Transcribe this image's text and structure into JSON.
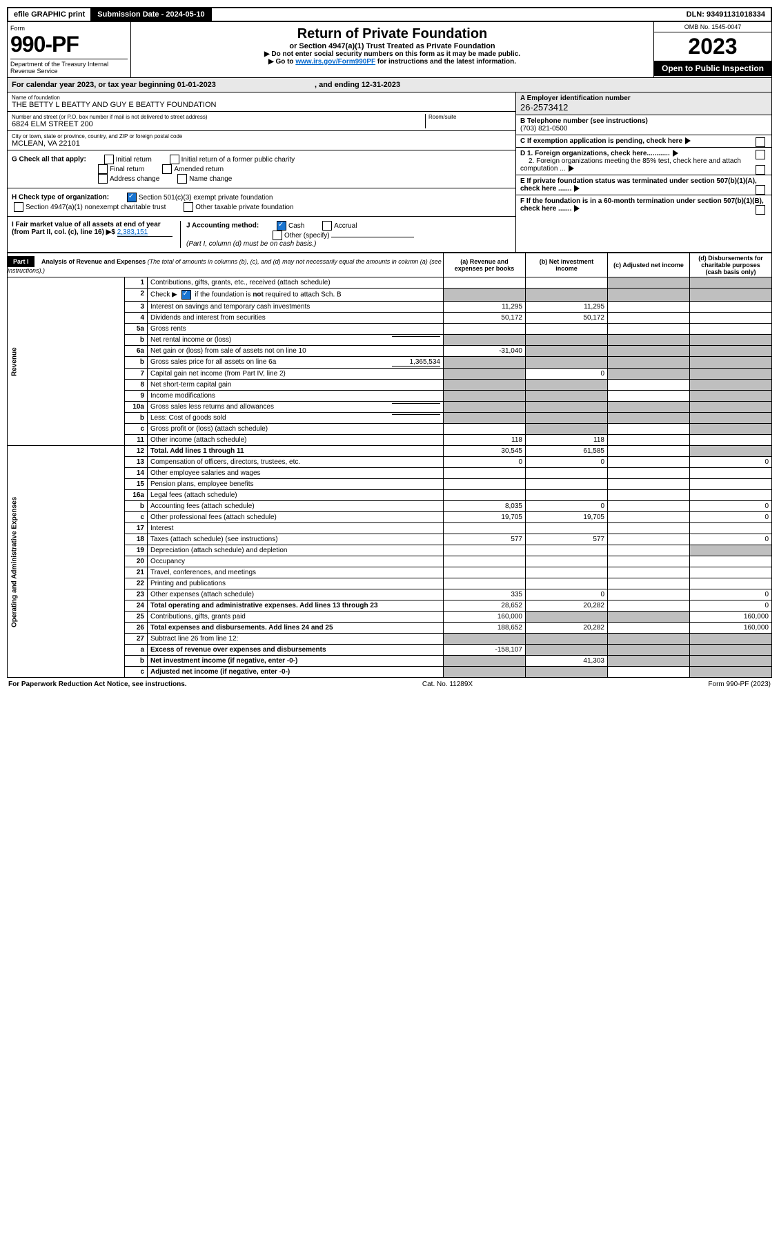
{
  "topbar": {
    "efile": "efile GRAPHIC print",
    "subdate_lbl": "Submission Date - ",
    "subdate": "2024-05-10",
    "dln_lbl": "DLN: ",
    "dln": "93491131018334"
  },
  "header": {
    "form": "Form",
    "num": "990-PF",
    "dept": "Department of the Treasury\nInternal Revenue Service",
    "title": "Return of Private Foundation",
    "sub": "or Section 4947(a)(1) Trust Treated as Private Foundation",
    "note1": "▶ Do not enter social security numbers on this form as it may be made public.",
    "note2": "▶ Go to ",
    "link": "www.irs.gov/Form990PF",
    "note3": " for instructions and the latest information.",
    "omb": "OMB No. 1545-0047",
    "year": "2023",
    "open": "Open to Public Inspection"
  },
  "cal": {
    "text": "For calendar year 2023, or tax year beginning 01-01-2023",
    "mid": ", and ending 12-31-2023"
  },
  "ident": {
    "name_lbl": "Name of foundation",
    "name": "THE BETTY L BEATTY AND GUY E BEATTY FOUNDATION",
    "addr_lbl": "Number and street (or P.O. box number if mail is not delivered to street address)",
    "addr": "6824 ELM STREET 200",
    "room_lbl": "Room/suite",
    "city_lbl": "City or town, state or province, country, and ZIP or foreign postal code",
    "city": "MCLEAN, VA  22101",
    "ein_lbl": "A Employer identification number",
    "ein": "26-2573412",
    "tel_lbl": "B Telephone number (see instructions)",
    "tel": "(703) 821-0500",
    "c": "C If exemption application is pending, check here",
    "d1": "D 1. Foreign organizations, check here............",
    "d2": "2. Foreign organizations meeting the 85% test, check here and attach computation ...",
    "e": "E If private foundation status was terminated under section 507(b)(1)(A), check here .......",
    "f": "F If the foundation is in a 60-month termination under section 507(b)(1)(B), check here .......",
    "g_lbl": "G Check all that apply:",
    "g1": "Initial return",
    "g2": "Final return",
    "g3": "Address change",
    "g4": "Initial return of a former public charity",
    "g5": "Amended return",
    "g6": "Name change",
    "h_lbl": "H Check type of organization:",
    "h1": "Section 501(c)(3) exempt private foundation",
    "h2": "Section 4947(a)(1) nonexempt charitable trust",
    "h3": "Other taxable private foundation",
    "i_lbl": "I Fair market value of all assets at end of year (from Part II, col. (c), line 16) ▶$ ",
    "i_val": "2,383,151",
    "j_lbl": "J Accounting method:",
    "j1": "Cash",
    "j2": "Accrual",
    "j3": "Other (specify)",
    "j_note": "(Part I, column (d) must be on cash basis.)"
  },
  "part1": {
    "hdr": "Part I",
    "title": "Analysis of Revenue and Expenses",
    "note": "(The total of amounts in columns (b), (c), and (d) may not necessarily equal the amounts in column (a) (see instructions).)",
    "cols": {
      "a": "(a) Revenue and expenses per books",
      "b": "(b) Net investment income",
      "c": "(c) Adjusted net income",
      "d": "(d) Disbursements for charitable purposes (cash basis only)"
    }
  },
  "sections": {
    "rev": "Revenue",
    "oae": "Operating and Administrative Expenses"
  },
  "rows": [
    {
      "n": "1",
      "d": "Contributions, gifts, grants, etc., received (attach schedule)",
      "a": "",
      "b": "",
      "cs": true,
      "ds": true
    },
    {
      "n": "2",
      "d": "Check ▶ [✓] if the foundation is not required to attach Sch. B",
      "dotted": true,
      "a": "",
      "as": true,
      "bs": true,
      "cs": true,
      "ds": true
    },
    {
      "n": "3",
      "d": "Interest on savings and temporary cash investments",
      "a": "11,295",
      "b": "11,295"
    },
    {
      "n": "4",
      "d": "Dividends and interest from securities",
      "a": "50,172",
      "b": "50,172"
    },
    {
      "n": "5a",
      "d": "Gross rents",
      "dotted": true
    },
    {
      "n": "b",
      "d": "Net rental income or (loss)",
      "inline": true,
      "as": true,
      "bs": true,
      "cs": true,
      "ds": true
    },
    {
      "n": "6a",
      "d": "Net gain or (loss) from sale of assets not on line 10",
      "a": "-31,040",
      "bs": true,
      "cs": true,
      "ds": true
    },
    {
      "n": "b",
      "d": "Gross sales price for all assets on line 6a",
      "inline_val": "1,365,534",
      "as": true,
      "bs": true,
      "cs": true,
      "ds": true
    },
    {
      "n": "7",
      "d": "Capital gain net income (from Part IV, line 2)",
      "as": true,
      "b": "0",
      "cs": true,
      "ds": true
    },
    {
      "n": "8",
      "d": "Net short-term capital gain",
      "dotted": true,
      "as": true,
      "bs": true,
      "ds": true
    },
    {
      "n": "9",
      "d": "Income modifications",
      "dotted": true,
      "as": true,
      "bs": true,
      "ds": true
    },
    {
      "n": "10a",
      "d": "Gross sales less returns and allowances",
      "inline": true,
      "as": true,
      "bs": true,
      "cs": true,
      "ds": true
    },
    {
      "n": "b",
      "d": "Less: Cost of goods sold",
      "dotted": true,
      "inline": true,
      "as": true,
      "bs": true,
      "cs": true,
      "ds": true
    },
    {
      "n": "c",
      "d": "Gross profit or (loss) (attach schedule)",
      "dotted": true,
      "bs": true,
      "ds": true
    },
    {
      "n": "11",
      "d": "Other income (attach schedule)",
      "dotted": true,
      "a": "118",
      "b": "118"
    },
    {
      "n": "12",
      "d": "Total. Add lines 1 through 11",
      "dotted": true,
      "bold": true,
      "a": "30,545",
      "b": "61,585",
      "ds": true
    },
    {
      "sec": "oae",
      "n": "13",
      "d": "Compensation of officers, directors, trustees, etc.",
      "a": "0",
      "b": "0",
      "dval": "0"
    },
    {
      "n": "14",
      "d": "Other employee salaries and wages",
      "dotted": true
    },
    {
      "n": "15",
      "d": "Pension plans, employee benefits",
      "dotted": true
    },
    {
      "n": "16a",
      "d": "Legal fees (attach schedule)",
      "dotted": true
    },
    {
      "n": "b",
      "d": "Accounting fees (attach schedule)",
      "dotted": true,
      "a": "8,035",
      "b": "0",
      "dval": "0"
    },
    {
      "n": "c",
      "d": "Other professional fees (attach schedule)",
      "dotted": true,
      "a": "19,705",
      "b": "19,705",
      "dval": "0"
    },
    {
      "n": "17",
      "d": "Interest",
      "dotted": true
    },
    {
      "n": "18",
      "d": "Taxes (attach schedule) (see instructions)",
      "dotted": true,
      "a": "577",
      "b": "577",
      "dval": "0"
    },
    {
      "n": "19",
      "d": "Depreciation (attach schedule) and depletion",
      "dotted": true,
      "ds": true
    },
    {
      "n": "20",
      "d": "Occupancy",
      "dotted": true
    },
    {
      "n": "21",
      "d": "Travel, conferences, and meetings",
      "dotted": true
    },
    {
      "n": "22",
      "d": "Printing and publications",
      "dotted": true
    },
    {
      "n": "23",
      "d": "Other expenses (attach schedule)",
      "dotted": true,
      "a": "335",
      "b": "0",
      "dval": "0"
    },
    {
      "n": "24",
      "d": "Total operating and administrative expenses. Add lines 13 through 23",
      "dotted": true,
      "bold": true,
      "a": "28,652",
      "b": "20,282",
      "dval": "0"
    },
    {
      "n": "25",
      "d": "Contributions, gifts, grants paid",
      "dotted": true,
      "a": "160,000",
      "bs": true,
      "cs": true,
      "dval": "160,000"
    },
    {
      "n": "26",
      "d": "Total expenses and disbursements. Add lines 24 and 25",
      "bold": true,
      "a": "188,652",
      "b": "20,282",
      "dval": "160,000"
    },
    {
      "n": "27",
      "d": "Subtract line 26 from line 12:",
      "as": true,
      "bs": true,
      "cs": true,
      "ds": true
    },
    {
      "n": "a",
      "d": "Excess of revenue over expenses and disbursements",
      "bold": true,
      "a": "-158,107",
      "bs": true,
      "cs": true,
      "ds": true
    },
    {
      "n": "b",
      "d": "Net investment income (if negative, enter -0-)",
      "bold": true,
      "as": true,
      "b": "41,303",
      "cs": true,
      "ds": true
    },
    {
      "n": "c",
      "d": "Adjusted net income (if negative, enter -0-)",
      "dotted": true,
      "bold": true,
      "as": true,
      "bs": true,
      "ds": true
    }
  ],
  "footer": {
    "left": "For Paperwork Reduction Act Notice, see instructions.",
    "mid": "Cat. No. 11289X",
    "right": "Form 990-PF (2023)"
  }
}
